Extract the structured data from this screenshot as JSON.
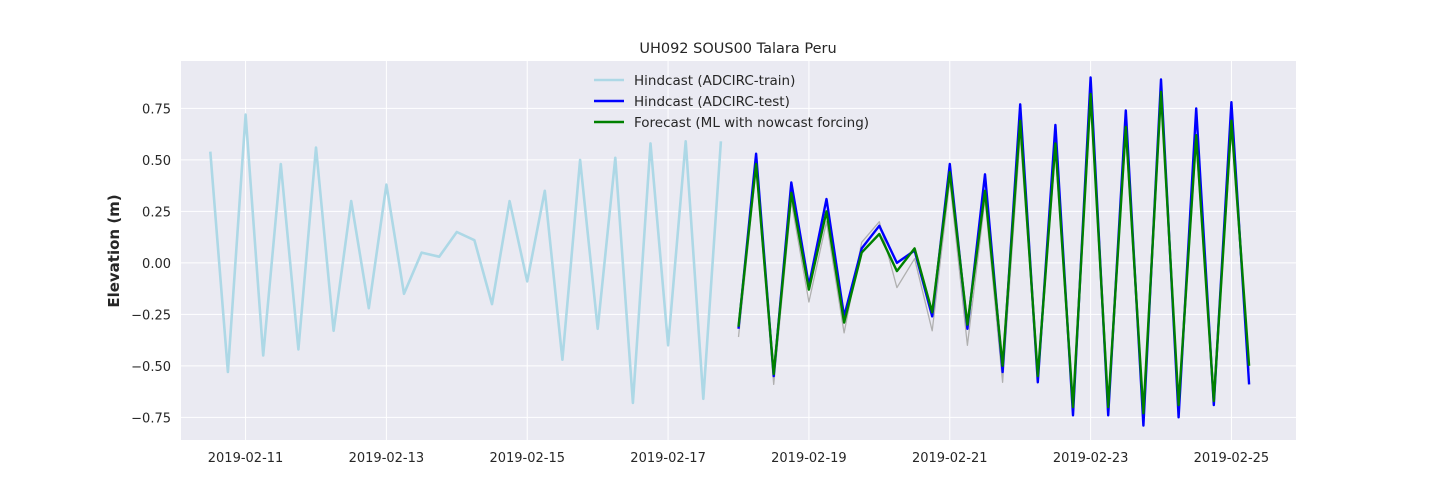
{
  "chart_data": {
    "type": "line",
    "title": "UH092 SOUS00 Talara Peru",
    "xlabel": "",
    "ylabel": "Elevation (m)",
    "x_ticks": [
      "2019-02-11",
      "2019-02-13",
      "2019-02-15",
      "2019-02-17",
      "2019-02-19",
      "2019-02-21",
      "2019-02-23",
      "2019-02-25"
    ],
    "y_ticks": [
      "−0.75",
      "−0.50",
      "−0.25",
      "0.00",
      "0.25",
      "0.50",
      "0.75"
    ],
    "xlim": [
      "2019-02-10T02:00",
      "2019-02-25T22:00"
    ],
    "ylim": [
      -0.86,
      0.98
    ],
    "grid": true,
    "legend_position": "top-center",
    "series": [
      {
        "name": "Hindcast (ADCIRC-train)",
        "color": "#add8e6",
        "x": [
          "2019-02-10T12:00",
          "2019-02-10T18:00",
          "2019-02-11T00:00",
          "2019-02-11T06:00",
          "2019-02-11T12:00",
          "2019-02-11T18:00",
          "2019-02-12T00:00",
          "2019-02-12T06:00",
          "2019-02-12T12:00",
          "2019-02-12T18:00",
          "2019-02-13T00:00",
          "2019-02-13T06:00",
          "2019-02-13T12:00",
          "2019-02-13T18:00",
          "2019-02-14T00:00",
          "2019-02-14T06:00",
          "2019-02-14T12:00",
          "2019-02-14T18:00",
          "2019-02-15T00:00",
          "2019-02-15T06:00",
          "2019-02-15T12:00",
          "2019-02-15T18:00",
          "2019-02-16T00:00",
          "2019-02-16T06:00",
          "2019-02-16T12:00",
          "2019-02-16T18:00",
          "2019-02-17T00:00",
          "2019-02-17T06:00",
          "2019-02-17T12:00",
          "2019-02-17T18:00"
        ],
        "values": [
          0.54,
          -0.53,
          0.72,
          -0.45,
          0.48,
          -0.42,
          0.56,
          -0.33,
          0.3,
          -0.22,
          0.38,
          -0.15,
          0.05,
          0.03,
          0.15,
          0.11,
          -0.2,
          0.3,
          -0.09,
          0.35,
          -0.47,
          0.5,
          -0.32,
          0.51,
          -0.68,
          0.58,
          -0.4,
          0.59,
          -0.66,
          0.59
        ]
      },
      {
        "name": "",
        "color": "#b0b0b0",
        "x": [
          "2019-02-18T00:00",
          "2019-02-18T06:00",
          "2019-02-18T12:00",
          "2019-02-18T18:00",
          "2019-02-19T00:00",
          "2019-02-19T06:00",
          "2019-02-19T12:00",
          "2019-02-19T18:00",
          "2019-02-20T00:00",
          "2019-02-20T06:00",
          "2019-02-20T12:00",
          "2019-02-20T18:00",
          "2019-02-21T00:00",
          "2019-02-21T06:00",
          "2019-02-21T12:00",
          "2019-02-21T18:00",
          "2019-02-22T00:00",
          "2019-02-22T06:00",
          "2019-02-22T12:00",
          "2019-02-22T18:00",
          "2019-02-23T00:00",
          "2019-02-23T06:00",
          "2019-02-23T12:00",
          "2019-02-23T18:00",
          "2019-02-24T00:00",
          "2019-02-24T06:00",
          "2019-02-24T12:00",
          "2019-02-24T18:00",
          "2019-02-25T00:00",
          "2019-02-25T06:00"
        ],
        "values": [
          -0.36,
          0.46,
          -0.59,
          0.3,
          -0.19,
          0.2,
          -0.34,
          0.1,
          0.2,
          -0.12,
          0.02,
          -0.33,
          0.4,
          -0.4,
          0.31,
          -0.58,
          0.62,
          -0.55,
          0.54,
          -0.71,
          0.78,
          -0.7,
          0.62,
          -0.76,
          0.8,
          -0.7,
          0.58,
          -0.67,
          0.64,
          -0.52
        ]
      },
      {
        "name": "Hindcast (ADCIRC-test)",
        "color": "#0000ff",
        "x": [
          "2019-02-18T00:00",
          "2019-02-18T06:00",
          "2019-02-18T12:00",
          "2019-02-18T18:00",
          "2019-02-19T00:00",
          "2019-02-19T06:00",
          "2019-02-19T12:00",
          "2019-02-19T18:00",
          "2019-02-20T00:00",
          "2019-02-20T06:00",
          "2019-02-20T12:00",
          "2019-02-20T18:00",
          "2019-02-21T00:00",
          "2019-02-21T06:00",
          "2019-02-21T12:00",
          "2019-02-21T18:00",
          "2019-02-22T00:00",
          "2019-02-22T06:00",
          "2019-02-22T12:00",
          "2019-02-22T18:00",
          "2019-02-23T00:00",
          "2019-02-23T06:00",
          "2019-02-23T12:00",
          "2019-02-23T18:00",
          "2019-02-24T00:00",
          "2019-02-24T06:00",
          "2019-02-24T12:00",
          "2019-02-24T18:00",
          "2019-02-25T00:00",
          "2019-02-25T06:00"
        ],
        "values": [
          -0.32,
          0.53,
          -0.55,
          0.39,
          -0.11,
          0.31,
          -0.26,
          0.07,
          0.18,
          0.0,
          0.06,
          -0.26,
          0.48,
          -0.32,
          0.43,
          -0.53,
          0.77,
          -0.58,
          0.67,
          -0.74,
          0.9,
          -0.74,
          0.74,
          -0.79,
          0.89,
          -0.75,
          0.75,
          -0.69,
          0.78,
          -0.59
        ]
      },
      {
        "name": "Forecast (ML with nowcast forcing)",
        "color": "#008000",
        "x": [
          "2019-02-18T00:00",
          "2019-02-18T06:00",
          "2019-02-18T12:00",
          "2019-02-18T18:00",
          "2019-02-19T00:00",
          "2019-02-19T06:00",
          "2019-02-19T12:00",
          "2019-02-19T18:00",
          "2019-02-20T00:00",
          "2019-02-20T06:00",
          "2019-02-20T12:00",
          "2019-02-20T18:00",
          "2019-02-21T00:00",
          "2019-02-21T06:00",
          "2019-02-21T12:00",
          "2019-02-21T18:00",
          "2019-02-22T00:00",
          "2019-02-22T06:00",
          "2019-02-22T12:00",
          "2019-02-22T18:00",
          "2019-02-23T00:00",
          "2019-02-23T06:00",
          "2019-02-23T12:00",
          "2019-02-23T18:00",
          "2019-02-24T00:00",
          "2019-02-24T06:00",
          "2019-02-24T12:00",
          "2019-02-24T18:00",
          "2019-02-25T00:00",
          "2019-02-25T06:00"
        ],
        "values": [
          -0.31,
          0.48,
          -0.54,
          0.34,
          -0.13,
          0.25,
          -0.29,
          0.05,
          0.14,
          -0.04,
          0.07,
          -0.24,
          0.44,
          -0.3,
          0.35,
          -0.5,
          0.69,
          -0.55,
          0.58,
          -0.7,
          0.82,
          -0.7,
          0.66,
          -0.73,
          0.83,
          -0.69,
          0.62,
          -0.67,
          0.69,
          -0.5
        ]
      }
    ]
  }
}
